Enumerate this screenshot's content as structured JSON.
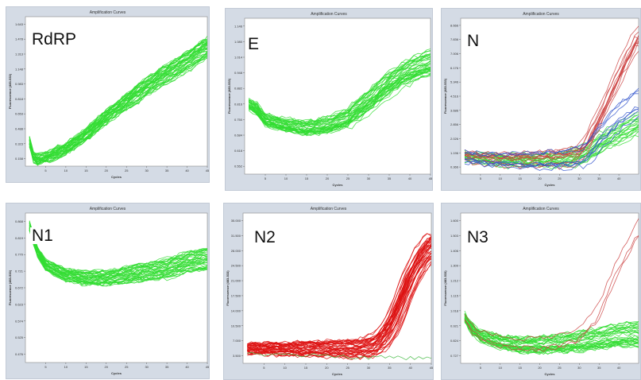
{
  "chart_data": [
    {
      "type": "line",
      "panel_label": "RdRP",
      "title": "Amplification Curves",
      "xlabel": "Cycles",
      "ylabel": "Fluorescence (483-533)",
      "xlim": [
        0,
        45
      ],
      "ylim": [
        0.158,
        1.65
      ],
      "x_ticks": [
        5,
        10,
        15,
        20,
        25,
        30,
        35,
        40,
        45
      ],
      "y_ticks": [
        "0.158",
        "0.323",
        "0.488",
        "0.653",
        "0.818",
        "0.983",
        "1.148",
        "1.313",
        "1.478",
        "1.643"
      ],
      "series": [
        {
          "color": "#33dd33",
          "count": 40,
          "x": [
            1,
            2,
            3,
            5,
            10,
            15,
            20,
            25,
            30,
            35,
            40,
            45
          ],
          "values": [
            0.4,
            0.25,
            0.22,
            0.24,
            0.33,
            0.47,
            0.65,
            0.8,
            0.95,
            1.08,
            1.2,
            1.35
          ]
        }
      ]
    },
    {
      "type": "line",
      "panel_label": "E",
      "title": "Amplification Curves",
      "xlabel": "Cycles",
      "ylabel": "Fluorescence (483-533)",
      "xlim": [
        0,
        45
      ],
      "ylim": [
        0.552,
        1.146
      ],
      "x_ticks": [
        5,
        10,
        15,
        20,
        25,
        30,
        35,
        40,
        45
      ],
      "y_ticks": [
        "0.552",
        "0.618",
        "0.684",
        "0.750",
        "0.816",
        "0.882",
        "0.948",
        "1.014",
        "1.080",
        "1.146"
      ],
      "series": [
        {
          "color": "#33dd33",
          "count": 40,
          "x": [
            1,
            3,
            5,
            10,
            15,
            20,
            25,
            30,
            35,
            40,
            45
          ],
          "values": [
            0.82,
            0.8,
            0.76,
            0.74,
            0.73,
            0.74,
            0.77,
            0.83,
            0.9,
            0.95,
            0.98
          ]
        }
      ]
    },
    {
      "type": "line",
      "panel_label": "N",
      "title": "Amplification Curves",
      "xlabel": "Cycles",
      "ylabel": "Fluorescence (483-533)",
      "xlim": [
        0,
        45
      ],
      "ylim": [
        0,
        9.0
      ],
      "x_ticks": [
        5,
        10,
        15,
        20,
        25,
        30,
        35,
        40
      ],
      "y_ticks": [
        "0.366",
        "1.196",
        "2.026",
        "2.856",
        "3.686",
        "4.516",
        "5.346",
        "6.176",
        "7.006",
        "7.836",
        "8.666"
      ],
      "series": [
        {
          "color": "#33dd33",
          "count": 20,
          "x": [
            1,
            5,
            10,
            15,
            20,
            25,
            30,
            32,
            35,
            40,
            45
          ],
          "values": [
            1.0,
            0.9,
            0.8,
            0.78,
            0.8,
            0.82,
            1.0,
            1.2,
            1.7,
            2.3,
            2.9
          ]
        },
        {
          "color": "#cc4444",
          "count": 12,
          "x": [
            1,
            5,
            10,
            15,
            20,
            25,
            30,
            32,
            35,
            40,
            45
          ],
          "values": [
            1.0,
            0.9,
            0.82,
            0.8,
            0.82,
            0.85,
            1.1,
            1.6,
            3.0,
            5.5,
            7.8
          ]
        },
        {
          "color": "#3355cc",
          "count": 8,
          "x": [
            1,
            5,
            10,
            15,
            20,
            25,
            30,
            32,
            35,
            40,
            45
          ],
          "values": [
            1.0,
            0.9,
            0.82,
            0.8,
            0.82,
            0.85,
            1.05,
            1.4,
            2.3,
            3.5,
            4.3
          ]
        }
      ]
    },
    {
      "type": "line",
      "panel_label": "N1",
      "title": "Amplification Curves",
      "xlabel": "Cycles",
      "ylabel": "Fluorescence (483-533)",
      "xlim": [
        0,
        45
      ],
      "ylim": [
        0.44,
        0.9
      ],
      "x_ticks": [
        5,
        10,
        15,
        20,
        25,
        30,
        35,
        40,
        45
      ],
      "y_ticks": [
        "0.476",
        "0.525",
        "0.574",
        "0.623",
        "0.672",
        "0.721",
        "0.770",
        "0.819",
        "0.868"
      ],
      "series": [
        {
          "color": "#33dd33",
          "count": 40,
          "x": [
            1,
            3,
            5,
            10,
            15,
            20,
            25,
            30,
            35,
            40,
            45
          ],
          "values": [
            0.86,
            0.78,
            0.74,
            0.71,
            0.7,
            0.7,
            0.71,
            0.72,
            0.73,
            0.75,
            0.76
          ]
        }
      ]
    },
    {
      "type": "line",
      "panel_label": "N2",
      "title": "Amplification Curves",
      "xlabel": "Cycles",
      "ylabel": "Fluorescence (483-533)",
      "xlim": [
        0,
        45
      ],
      "ylim": [
        0,
        36000
      ],
      "x_ticks": [
        5,
        10,
        15,
        20,
        25,
        30,
        35,
        40,
        45
      ],
      "y_ticks": [
        "3.500",
        "7.000",
        "10.500",
        "14.000",
        "17.500",
        "21.000",
        "24.500",
        "28.000",
        "31.500",
        "35.000"
      ],
      "series": [
        {
          "color": "#dd1111",
          "count": 40,
          "x": [
            1,
            10,
            20,
            28,
            30,
            32,
            34,
            36,
            38,
            40,
            42,
            45
          ],
          "values": [
            3500,
            3400,
            3400,
            3500,
            3800,
            4500,
            6500,
            10000,
            15000,
            20000,
            24000,
            28000
          ]
        },
        {
          "color": "#44bb44",
          "count": 1,
          "x": [
            1,
            10,
            20,
            30,
            40,
            45
          ],
          "values": [
            3500,
            3400,
            3400,
            3400,
            3450,
            3500
          ]
        }
      ]
    },
    {
      "type": "line",
      "panel_label": "N3",
      "title": "Amplification Curves",
      "xlabel": "Cycles",
      "ylabel": "Fluorescence (483-533)",
      "xlim": [
        0,
        45
      ],
      "ylim": [
        0.68,
        1.66
      ],
      "x_ticks": [
        5,
        10,
        15,
        20,
        25,
        30,
        35,
        40
      ],
      "y_ticks": [
        "0.727",
        "0.824",
        "0.921",
        "1.018",
        "1.115",
        "1.212",
        "1.309",
        "1.406",
        "1.503",
        "1.600"
      ],
      "series": [
        {
          "color": "#33dd33",
          "count": 35,
          "x": [
            1,
            3,
            5,
            10,
            15,
            20,
            25,
            30,
            35,
            40,
            45
          ],
          "values": [
            0.98,
            0.9,
            0.86,
            0.82,
            0.8,
            0.8,
            0.81,
            0.82,
            0.84,
            0.86,
            0.87
          ]
        },
        {
          "color": "#cc4444",
          "count": 3,
          "x": [
            1,
            3,
            5,
            10,
            15,
            20,
            25,
            30,
            35,
            40,
            45
          ],
          "values": [
            0.98,
            0.9,
            0.86,
            0.82,
            0.8,
            0.8,
            0.82,
            0.86,
            1.0,
            1.3,
            1.55
          ]
        }
      ]
    }
  ]
}
